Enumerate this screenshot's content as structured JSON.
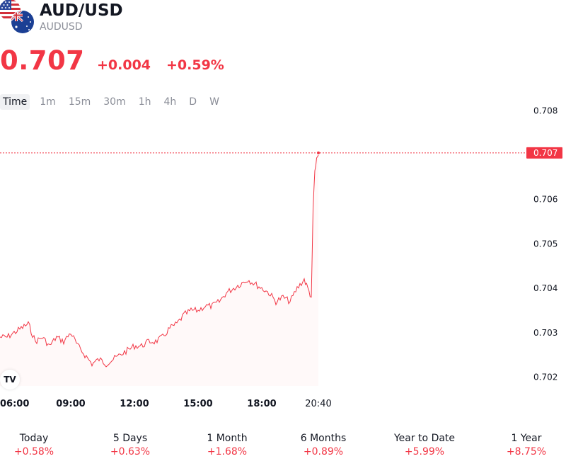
{
  "header": {
    "symbol": "AUD/USD",
    "sub_symbol": "AUDUSD",
    "price": "0.707",
    "change": "+0.004",
    "change_percent": "+0.59%",
    "accent_color": "#f23645",
    "icons": [
      "us-flag-icon",
      "australia-flag-icon",
      "tradingview-logo-icon"
    ]
  },
  "timeframes": {
    "active": "Time",
    "items": [
      "Time",
      "1m",
      "15m",
      "30m",
      "1h",
      "4h",
      "D",
      "W"
    ]
  },
  "chart_data": {
    "type": "line",
    "series": [
      {
        "x": [
          "05:40",
          "06:00",
          "06:20",
          "06:40",
          "07:00",
          "07:20",
          "07:40",
          "08:00",
          "08:20",
          "08:40",
          "09:00",
          "09:20",
          "09:40",
          "10:00",
          "10:20",
          "10:40",
          "11:00",
          "11:20",
          "11:40",
          "12:00",
          "12:20",
          "12:40",
          "13:00",
          "13:20",
          "13:40",
          "14:00",
          "14:20",
          "14:40",
          "15:00",
          "15:20",
          "15:40",
          "16:00",
          "16:20",
          "16:40",
          "17:00",
          "17:20",
          "17:40",
          "18:00",
          "18:20",
          "18:40",
          "19:00",
          "19:20",
          "19:40",
          "20:00",
          "20:10",
          "20:20",
          "20:25",
          "20:30",
          "20:35",
          "20:40"
        ],
        "values": [
          0.7029,
          0.7029,
          0.703,
          0.7031,
          0.7032,
          0.7028,
          0.7029,
          0.7027,
          0.7029,
          0.7028,
          0.703,
          0.7027,
          0.7025,
          0.7023,
          0.7024,
          0.7023,
          0.7024,
          0.7025,
          0.7026,
          0.7027,
          0.7027,
          0.7028,
          0.7028,
          0.7029,
          0.7031,
          0.7032,
          0.7034,
          0.7035,
          0.7035,
          0.7036,
          0.7036,
          0.7037,
          0.7039,
          0.704,
          0.7041,
          0.7042,
          0.7041,
          0.704,
          0.7039,
          0.7037,
          0.7038,
          0.7037,
          0.704,
          0.7042,
          0.704,
          0.7038,
          0.7058,
          0.7066,
          0.7069,
          0.707
        ]
      }
    ],
    "ylim": [
      0.7018,
      0.7081
    ],
    "yticks": [
      "0.708",
      "0.707",
      "0.706",
      "0.705",
      "0.704",
      "0.703",
      "0.702"
    ],
    "xticks": [
      "06:00",
      "09:00",
      "12:00",
      "15:00",
      "18:00",
      "20:40"
    ],
    "last_price_label": "0.707",
    "last_price": 0.70705,
    "line_color": "#f23645",
    "grid": false,
    "legend": "none"
  },
  "performance": [
    {
      "label": "Today",
      "value": "+0.58%"
    },
    {
      "label": "5 Days",
      "value": "+0.63%"
    },
    {
      "label": "1 Month",
      "value": "+1.68%"
    },
    {
      "label": "6 Months",
      "value": "+0.89%"
    },
    {
      "label": "Year to Date",
      "value": "+5.99%"
    },
    {
      "label": "1 Year",
      "value": "+8.75%"
    }
  ]
}
